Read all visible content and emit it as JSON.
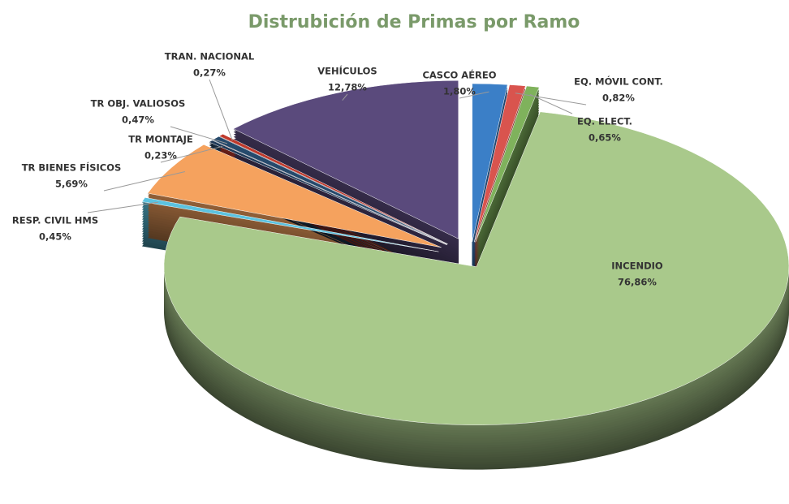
{
  "chart_data": {
    "type": "pie",
    "title": "Distrubición de Primas por Ramo",
    "categories": [
      "CASCO AÉREO",
      "EQ. MÓVIL  CONT.",
      "EQ. ELECT.",
      "INCENDIO",
      "RESP. CIVIL HMS",
      "TR BIENES FÍSICOS",
      "TR MONTAJE",
      "TR OBJ. VALIOSOS",
      "TRAN. NACIONAL",
      "VEHÍCULOS"
    ],
    "values": [
      1.8,
      0.82,
      0.65,
      76.86,
      0.45,
      5.69,
      0.23,
      0.47,
      0.27,
      12.78
    ],
    "value_labels": [
      "1,80%",
      "0,82%",
      "0,65%",
      "76,86%",
      "0,45%",
      "5,69%",
      "0,23%",
      "0,47%",
      "0,27%",
      "12,78%"
    ],
    "colors": [
      "#3b7fc7",
      "#d9544e",
      "#7fb25c",
      "#a9c98b",
      "#5cc3e0",
      "#f5a25e",
      "#1f3a58",
      "#264a6c",
      "#c0392b",
      "#5a4a7c"
    ]
  }
}
